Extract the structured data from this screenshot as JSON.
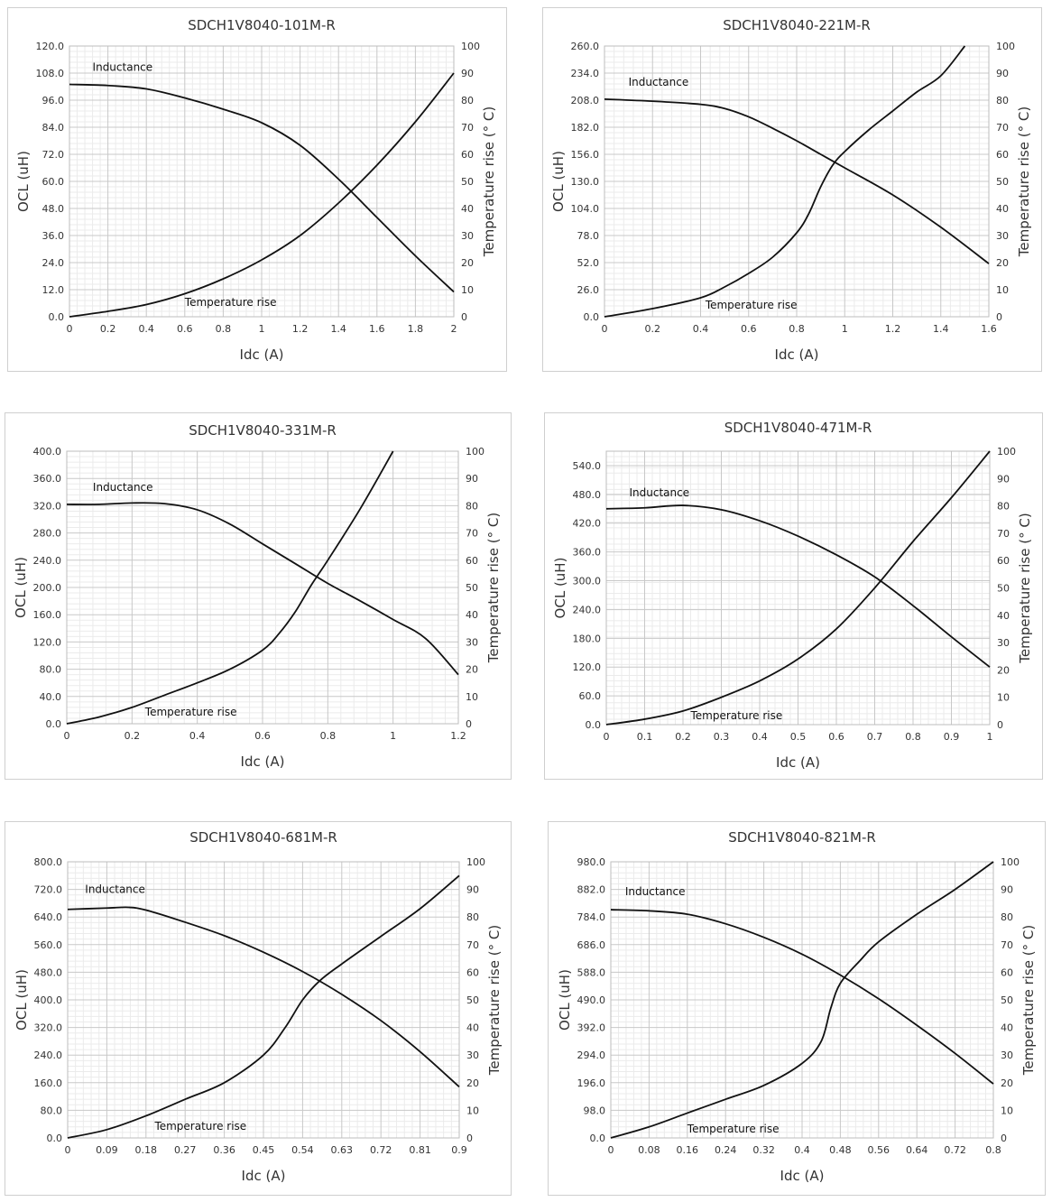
{
  "chart_data": [
    {
      "type": "line",
      "title": "SDCH1V8040-101M-R",
      "xlabel": "Idc (A)",
      "ylabel": "OCL (uH)",
      "y2label": "Temperature rise (° C)",
      "xlim": [
        0,
        2
      ],
      "ylim": [
        0,
        120
      ],
      "y2lim": [
        0,
        100
      ],
      "xticks": [
        "0",
        "0.2",
        "0.4",
        "0.6",
        "0.8",
        "1",
        "1.2",
        "1.4",
        "1.6",
        "1.8",
        "2"
      ],
      "yticks": [
        "0.0",
        "12.0",
        "24.0",
        "36.0",
        "48.0",
        "60.0",
        "72.0",
        "84.0",
        "96.0",
        "108.0",
        "120.0"
      ],
      "y2ticks": [
        "0",
        "10",
        "20",
        "30",
        "40",
        "50",
        "60",
        "70",
        "80",
        "90",
        "100"
      ],
      "series": [
        {
          "name": "Inductance",
          "axis": "left",
          "x": [
            0,
            0.2,
            0.4,
            0.6,
            0.8,
            1.0,
            1.2,
            1.4,
            1.6,
            1.8,
            2.0
          ],
          "y": [
            103,
            102.5,
            101,
            97,
            92,
            86,
            76,
            61,
            44,
            27,
            11
          ]
        },
        {
          "name": "Temperature rise",
          "axis": "right",
          "x": [
            0,
            0.2,
            0.4,
            0.6,
            0.8,
            1.0,
            1.2,
            1.4,
            1.6,
            1.8,
            2.0
          ],
          "y": [
            0,
            2,
            4.5,
            8.5,
            14,
            21,
            30,
            42,
            56,
            72,
            90
          ]
        }
      ],
      "annotations": [
        {
          "text": "Inductance",
          "x": 0.12,
          "y": 109,
          "axis": "left"
        },
        {
          "text": "Temperature rise",
          "x": 0.6,
          "y": 4,
          "axis": "right"
        }
      ]
    },
    {
      "type": "line",
      "title": "SDCH1V8040-221M-R",
      "xlabel": "Idc (A)",
      "ylabel": "OCL (uH)",
      "y2label": "Temperature rise (° C)",
      "xlim": [
        0,
        1.6
      ],
      "ylim": [
        0,
        260
      ],
      "y2lim": [
        0,
        100
      ],
      "xticks": [
        "0",
        "0.2",
        "0.4",
        "0.6",
        "0.8",
        "1",
        "1.2",
        "1.4",
        "1.6"
      ],
      "yticks": [
        "0.0",
        "26.0",
        "52.0",
        "78.0",
        "104.0",
        "130.0",
        "156.0",
        "182.0",
        "208.0",
        "234.0",
        "260.0"
      ],
      "y2ticks": [
        "0",
        "10",
        "20",
        "30",
        "40",
        "50",
        "60",
        "70",
        "80",
        "90",
        "100"
      ],
      "series": [
        {
          "name": "Inductance",
          "axis": "left",
          "x": [
            0,
            0.2,
            0.4,
            0.5,
            0.6,
            0.7,
            0.8,
            0.9,
            1.0,
            1.2,
            1.4,
            1.6
          ],
          "y": [
            209,
            207,
            204,
            200,
            192,
            181,
            169,
            156,
            143,
            117,
            86,
            51
          ]
        },
        {
          "name": "Temperature rise",
          "axis": "right",
          "x": [
            0,
            0.2,
            0.4,
            0.5,
            0.6,
            0.7,
            0.8,
            0.85,
            0.9,
            0.95,
            1.0,
            1.1,
            1.2,
            1.3,
            1.4,
            1.5
          ],
          "y": [
            0,
            3,
            7,
            11,
            16,
            22,
            31,
            38,
            48,
            56,
            61,
            69,
            76,
            83,
            89,
            100
          ]
        }
      ],
      "annotations": [
        {
          "text": "Inductance",
          "x": 0.1,
          "y": 222,
          "axis": "left"
        },
        {
          "text": "Temperature rise",
          "x": 0.42,
          "y": 3,
          "axis": "right"
        }
      ]
    },
    {
      "type": "line",
      "title": "SDCH1V8040-331M-R",
      "xlabel": "Idc (A)",
      "ylabel": "OCL (uH)",
      "y2label": "Temperature rise (° C)",
      "xlim": [
        0,
        1.2
      ],
      "ylim": [
        0,
        400
      ],
      "y2lim": [
        0,
        100
      ],
      "xticks": [
        "0",
        "0.2",
        "0.4",
        "0.6",
        "0.8",
        "1",
        "1.2"
      ],
      "yticks": [
        "0.0",
        "40.0",
        "80.0",
        "120.0",
        "160.0",
        "200.0",
        "240.0",
        "280.0",
        "320.0",
        "360.0",
        "400.0"
      ],
      "y2ticks": [
        "0",
        "10",
        "20",
        "30",
        "40",
        "50",
        "60",
        "70",
        "80",
        "90",
        "100"
      ],
      "series": [
        {
          "name": "Inductance",
          "axis": "left",
          "x": [
            0,
            0.1,
            0.2,
            0.3,
            0.4,
            0.5,
            0.6,
            0.7,
            0.8,
            0.9,
            1.0,
            1.1,
            1.2
          ],
          "y": [
            322,
            322,
            324,
            323,
            314,
            293,
            264,
            235,
            206,
            180,
            153,
            125,
            72
          ]
        },
        {
          "name": "Temperature rise",
          "axis": "right",
          "x": [
            0,
            0.1,
            0.2,
            0.3,
            0.4,
            0.5,
            0.6,
            0.65,
            0.7,
            0.75,
            0.8,
            0.9,
            1.0
          ],
          "y": [
            0,
            2.5,
            6,
            10.5,
            15,
            20,
            27,
            33,
            41,
            51,
            60,
            79,
            100
          ]
        }
      ],
      "annotations": [
        {
          "text": "Inductance",
          "x": 0.08,
          "y": 342,
          "axis": "left"
        },
        {
          "text": "Temperature rise",
          "x": 0.24,
          "y": 3,
          "axis": "right"
        }
      ]
    },
    {
      "type": "line",
      "title": "SDCH1V8040-471M-R",
      "xlabel": "Idc (A)",
      "ylabel": "OCL (uH)",
      "y2label": "Temperature rise (° C)",
      "xlim": [
        0,
        1
      ],
      "ylim": [
        0,
        570
      ],
      "y2lim": [
        0,
        100
      ],
      "xticks": [
        "0",
        "0.1",
        "0.2",
        "0.3",
        "0.4",
        "0.5",
        "0.6",
        "0.7",
        "0.8",
        "0.9",
        "1"
      ],
      "yticks": [
        "0.0",
        "60.0",
        "120.0",
        "180.0",
        "240.0",
        "300.0",
        "360.0",
        "420.0",
        "480.0",
        "540.0"
      ],
      "ytick_values": [
        0,
        60,
        120,
        180,
        240,
        300,
        360,
        420,
        480,
        540
      ],
      "y2ticks": [
        "0",
        "10",
        "20",
        "30",
        "40",
        "50",
        "60",
        "70",
        "80",
        "90",
        "100"
      ],
      "series": [
        {
          "name": "Inductance",
          "axis": "left",
          "x": [
            0,
            0.1,
            0.2,
            0.3,
            0.4,
            0.5,
            0.6,
            0.7,
            0.8,
            0.9,
            1.0
          ],
          "y": [
            450,
            452,
            457,
            448,
            425,
            393,
            354,
            308,
            248,
            183,
            120
          ]
        },
        {
          "name": "Temperature rise",
          "axis": "right",
          "x": [
            0,
            0.1,
            0.2,
            0.3,
            0.4,
            0.5,
            0.6,
            0.7,
            0.8,
            0.9,
            1.0
          ],
          "y": [
            0,
            2,
            5,
            10,
            16,
            24,
            35,
            50,
            67,
            83,
            100
          ]
        }
      ],
      "annotations": [
        {
          "text": "Inductance",
          "x": 0.06,
          "y": 476,
          "axis": "left"
        },
        {
          "text": "Temperature rise",
          "x": 0.22,
          "y": 2,
          "axis": "right"
        }
      ]
    },
    {
      "type": "line",
      "title": "SDCH1V8040-681M-R",
      "xlabel": "Idc (A)",
      "ylabel": "OCL (uH)",
      "y2label": "Temperature rise (° C)",
      "xlim": [
        0,
        0.9
      ],
      "ylim": [
        0,
        800
      ],
      "y2lim": [
        0,
        100
      ],
      "xticks": [
        "0",
        "0.09",
        "0.18",
        "0.27",
        "0.36",
        "0.45",
        "0.54",
        "0.63",
        "0.72",
        "0.81",
        "0.9"
      ],
      "yticks": [
        "0.0",
        "80.0",
        "160.0",
        "240.0",
        "320.0",
        "400.0",
        "480.0",
        "560.0",
        "640.0",
        "720.0",
        "800.0"
      ],
      "y2ticks": [
        "0",
        "10",
        "20",
        "30",
        "40",
        "50",
        "60",
        "70",
        "80",
        "90",
        "100"
      ],
      "series": [
        {
          "name": "Inductance",
          "axis": "left",
          "x": [
            0,
            0.09,
            0.14,
            0.18,
            0.27,
            0.36,
            0.45,
            0.54,
            0.63,
            0.72,
            0.81,
            0.9
          ],
          "y": [
            662,
            666,
            668,
            660,
            625,
            586,
            538,
            482,
            416,
            340,
            250,
            148
          ]
        },
        {
          "name": "Temperature rise",
          "axis": "right",
          "x": [
            0,
            0.09,
            0.18,
            0.27,
            0.36,
            0.45,
            0.5,
            0.54,
            0.58,
            0.63,
            0.72,
            0.81,
            0.9
          ],
          "y": [
            0,
            3,
            8,
            14,
            20,
            30,
            40,
            50,
            57,
            63,
            73,
            83,
            95
          ]
        }
      ],
      "annotations": [
        {
          "text": "Inductance",
          "x": 0.04,
          "y": 710,
          "axis": "left"
        },
        {
          "text": "Temperature rise",
          "x": 0.2,
          "y": 3,
          "axis": "right"
        }
      ]
    },
    {
      "type": "line",
      "title": "SDCH1V8040-821M-R",
      "xlabel": "Idc (A)",
      "ylabel": "OCL (uH)",
      "y2label": "Temperature rise (° C)",
      "xlim": [
        0,
        0.8
      ],
      "ylim": [
        0,
        980
      ],
      "y2lim": [
        0,
        100
      ],
      "xticks": [
        "0",
        "0.08",
        "0.16",
        "0.24",
        "0.32",
        "0.4",
        "0.48",
        "0.56",
        "0.64",
        "0.72",
        "0.8"
      ],
      "yticks": [
        "0.0",
        "98.0",
        "196.0",
        "294.0",
        "392.0",
        "490.0",
        "588.0",
        "686.0",
        "784.0",
        "882.0",
        "980.0"
      ],
      "y2ticks": [
        "0",
        "10",
        "20",
        "30",
        "40",
        "50",
        "60",
        "70",
        "80",
        "90",
        "100"
      ],
      "series": [
        {
          "name": "Inductance",
          "axis": "left",
          "x": [
            0,
            0.08,
            0.16,
            0.24,
            0.32,
            0.4,
            0.48,
            0.56,
            0.64,
            0.72,
            0.8
          ],
          "y": [
            810,
            806,
            794,
            760,
            712,
            652,
            578,
            494,
            400,
            300,
            192
          ]
        },
        {
          "name": "Temperature rise",
          "axis": "right",
          "x": [
            0,
            0.08,
            0.16,
            0.24,
            0.32,
            0.4,
            0.44,
            0.46,
            0.48,
            0.52,
            0.56,
            0.64,
            0.72,
            0.8
          ],
          "y": [
            0,
            4,
            9,
            14,
            19,
            27,
            35,
            47,
            56,
            64,
            71,
            81,
            90,
            100
          ]
        }
      ],
      "annotations": [
        {
          "text": "Inductance",
          "x": 0.03,
          "y": 862,
          "axis": "left"
        },
        {
          "text": "Temperature rise",
          "x": 0.16,
          "y": 2,
          "axis": "right"
        }
      ]
    }
  ]
}
